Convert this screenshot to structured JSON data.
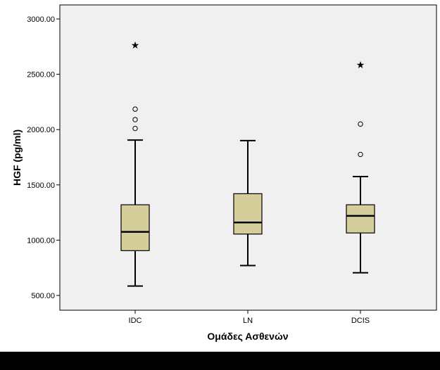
{
  "chart_data": {
    "type": "boxplot",
    "title": "",
    "xlabel": "Ομάδες Ασθενών",
    "ylabel": "HGF (pg/ml)",
    "ylim": [
      430,
      3100
    ],
    "yticks": [
      500,
      1000,
      1500,
      2000,
      2500,
      3000
    ],
    "ytick_labels": [
      "500.00",
      "1000.00",
      "1500.00",
      "2000.00",
      "2500.00",
      "3000.00"
    ],
    "grid": false,
    "legend": "none",
    "categories": [
      "IDC",
      "LN",
      "DCIS"
    ],
    "boxes": [
      {
        "category": "IDC",
        "whisker_low": 585,
        "q1": 905,
        "median": 1075,
        "q3": 1320,
        "whisker_high": 1905,
        "outliers": [
          2010,
          2090,
          2185
        ],
        "extremes": [
          2765
        ]
      },
      {
        "category": "LN",
        "whisker_low": 770,
        "q1": 1055,
        "median": 1160,
        "q3": 1420,
        "whisker_high": 1900,
        "outliers": [],
        "extremes": []
      },
      {
        "category": "DCIS",
        "whisker_low": 705,
        "q1": 1065,
        "median": 1220,
        "q3": 1320,
        "whisker_high": 1575,
        "outliers": [
          1775,
          2050
        ],
        "extremes": [
          2585
        ]
      }
    ],
    "colors": {
      "box_fill": "#d4cf9a",
      "plot_background": "#f0f0f0",
      "line": "#000000"
    }
  }
}
